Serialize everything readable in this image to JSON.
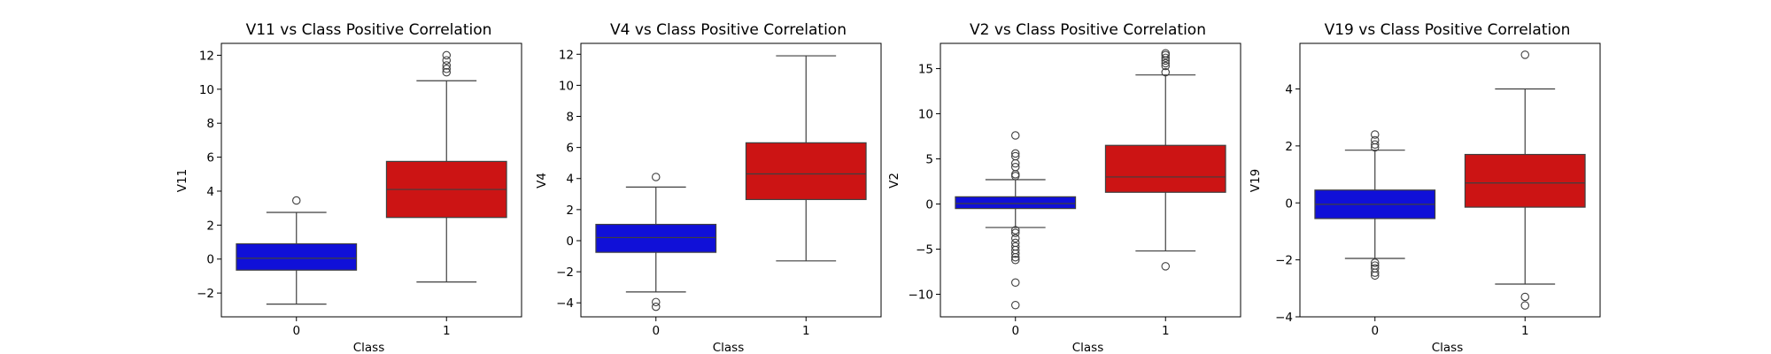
{
  "chart_data": [
    {
      "type": "box",
      "title": "V11 vs Class Positive Correlation",
      "xlabel": "Class",
      "ylabel": "V11",
      "categories": [
        "0",
        "1"
      ],
      "colors": [
        "#1010d8",
        "#cc1414"
      ],
      "ylim": [
        -3.4,
        12.7
      ],
      "yticks": [
        -2,
        0,
        2,
        4,
        6,
        8,
        10,
        12
      ],
      "ytick_labels": [
        "−2",
        "0",
        "2",
        "4",
        "6",
        "8",
        "10",
        "12"
      ],
      "boxes": [
        {
          "category": "0",
          "whislo": -2.65,
          "q1": -0.65,
          "med": 0.05,
          "q3": 0.9,
          "whishi": 2.75,
          "fliers": [
            3.45
          ]
        },
        {
          "category": "1",
          "whislo": -1.35,
          "q1": 2.45,
          "med": 4.1,
          "q3": 5.75,
          "whishi": 10.5,
          "fliers": [
            11.0,
            11.2,
            11.4,
            11.7,
            12.0
          ]
        }
      ]
    },
    {
      "type": "box",
      "title": "V4 vs Class Positive Correlation",
      "xlabel": "Class",
      "ylabel": "V4",
      "categories": [
        "0",
        "1"
      ],
      "colors": [
        "#1010d8",
        "#cc1414"
      ],
      "ylim": [
        -4.9,
        12.7
      ],
      "yticks": [
        -4,
        -2,
        0,
        2,
        4,
        6,
        8,
        10,
        12
      ],
      "ytick_labels": [
        "−4",
        "−2",
        "0",
        "2",
        "4",
        "6",
        "8",
        "10",
        "12"
      ],
      "boxes": [
        {
          "category": "0",
          "whislo": -3.3,
          "q1": -0.75,
          "med": 0.2,
          "q3": 1.05,
          "whishi": 3.45,
          "fliers": [
            4.1,
            -3.95,
            -4.25
          ]
        },
        {
          "category": "1",
          "whislo": -1.3,
          "q1": 2.65,
          "med": 4.3,
          "q3": 6.3,
          "whishi": 11.9,
          "fliers": []
        }
      ]
    },
    {
      "type": "box",
      "title": "V2 vs Class Positive Correlation",
      "xlabel": "Class",
      "ylabel": "V2",
      "categories": [
        "0",
        "1"
      ],
      "colors": [
        "#1010d8",
        "#cc1414"
      ],
      "ylim": [
        -12.5,
        17.8
      ],
      "yticks": [
        -10,
        -5,
        0,
        5,
        10,
        15
      ],
      "ytick_labels": [
        "−10",
        "−5",
        "0",
        "5",
        "10",
        "15"
      ],
      "boxes": [
        {
          "category": "0",
          "whislo": -2.6,
          "q1": -0.5,
          "med": 0.05,
          "q3": 0.8,
          "whishi": 2.7,
          "fliers": [
            3.1,
            3.3,
            4.1,
            4.5,
            5.3,
            5.6,
            7.6,
            -2.9,
            -3.2,
            -3.8,
            -4.3,
            -4.7,
            -5.1,
            -5.5,
            -5.9,
            -6.2,
            -8.7,
            -11.2
          ]
        },
        {
          "category": "1",
          "whislo": -5.2,
          "q1": 1.3,
          "med": 3.0,
          "q3": 6.5,
          "whishi": 14.3,
          "fliers": [
            14.6,
            15.3,
            15.6,
            15.9,
            16.2,
            16.5,
            16.7,
            -6.9
          ]
        }
      ]
    },
    {
      "type": "box",
      "title": "V19 vs Class Positive Correlation",
      "xlabel": "Class",
      "ylabel": "V19",
      "categories": [
        "0",
        "1"
      ],
      "colors": [
        "#1010d8",
        "#cc1414"
      ],
      "ylim": [
        -4.0,
        5.6
      ],
      "yticks": [
        -4,
        -2,
        0,
        2,
        4
      ],
      "ytick_labels": [
        "−4",
        "−2",
        "0",
        "2",
        "4"
      ],
      "boxes": [
        {
          "category": "0",
          "whislo": -1.95,
          "q1": -0.55,
          "med": -0.05,
          "q3": 0.45,
          "whishi": 1.85,
          "fliers": [
            1.95,
            2.05,
            2.2,
            2.4,
            -2.1,
            -2.2,
            -2.3,
            -2.45,
            -2.55
          ]
        },
        {
          "category": "1",
          "whislo": -2.85,
          "q1": -0.15,
          "med": 0.7,
          "q3": 1.7,
          "whishi": 4.0,
          "fliers": [
            5.2,
            -3.3,
            -3.6
          ]
        }
      ]
    }
  ]
}
